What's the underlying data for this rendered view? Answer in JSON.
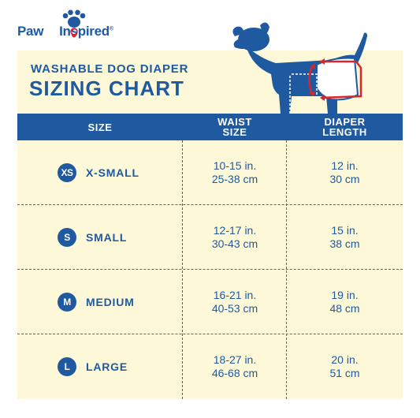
{
  "brand": {
    "name_part1": "Paw",
    "name_part2": "Inspired",
    "trademark": "®",
    "logo_icon": "paw-print-icon",
    "brand_color": "#1f5aa0",
    "accent_color": "#d9262b"
  },
  "chart": {
    "subtitle": "WASHABLE DOG DIAPER",
    "title": "SIZING CHART",
    "illustration": "dog-wearing-diaper-icon",
    "panel_color": "#fdf8d8"
  },
  "headers": {
    "size": "SIZE",
    "waist_line1": "WAIST",
    "waist_line2": "SIZE",
    "length_line1": "DIAPER",
    "length_line2": "LENGTH"
  },
  "rows": [
    {
      "badge": "XS",
      "name": "X-SMALL",
      "waist_in": "10-15 in.",
      "waist_cm": "25-38 cm",
      "length_in": "12 in.",
      "length_cm": "30 cm"
    },
    {
      "badge": "S",
      "name": "SMALL",
      "waist_in": "12-17 in.",
      "waist_cm": "30-43 cm",
      "length_in": "15 in.",
      "length_cm": "38 cm"
    },
    {
      "badge": "M",
      "name": "MEDIUM",
      "waist_in": "16-21 in.",
      "waist_cm": "40-53 cm",
      "length_in": "19 in.",
      "length_cm": "48 cm"
    },
    {
      "badge": "L",
      "name": "LARGE",
      "waist_in": "18-27 in.",
      "waist_cm": "46-68 cm",
      "length_in": "20 in.",
      "length_cm": "51 cm"
    }
  ]
}
